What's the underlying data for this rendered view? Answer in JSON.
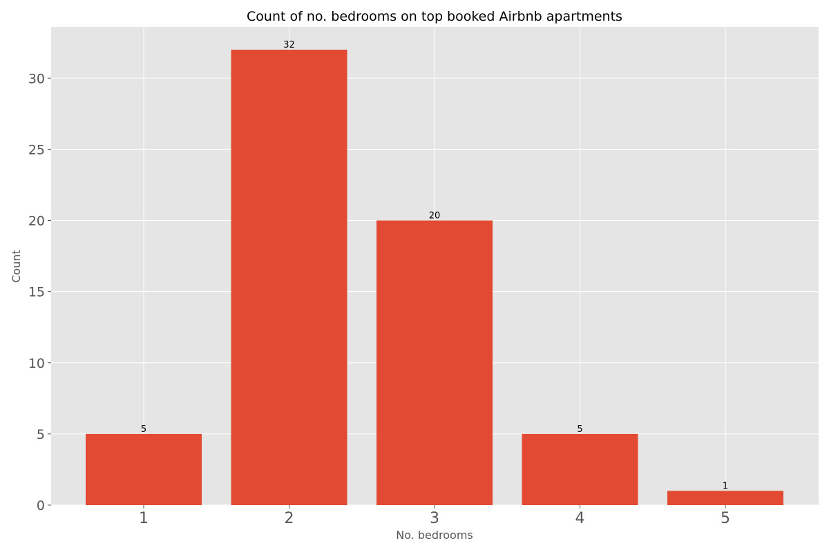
{
  "chart_data": {
    "type": "bar",
    "title": "Count of no. bedrooms on top booked Airbnb apartments",
    "xlabel": "No. bedrooms",
    "ylabel": "Count",
    "categories": [
      "1",
      "2",
      "3",
      "4",
      "5"
    ],
    "values": [
      5,
      32,
      20,
      5,
      1
    ],
    "data_labels": [
      "5",
      "32",
      "20",
      "5",
      "1"
    ],
    "ylim": [
      0,
      33.6
    ],
    "yticks": [
      0,
      5,
      10,
      15,
      20,
      25,
      30
    ],
    "ytick_labels": [
      "0",
      "5",
      "10",
      "15",
      "20",
      "25",
      "30"
    ],
    "grid": true,
    "colors": {
      "bar": "#e24a33",
      "plot_background": "#e5e5e5",
      "grid": "#ffffff",
      "tick_text": "#555555"
    }
  }
}
